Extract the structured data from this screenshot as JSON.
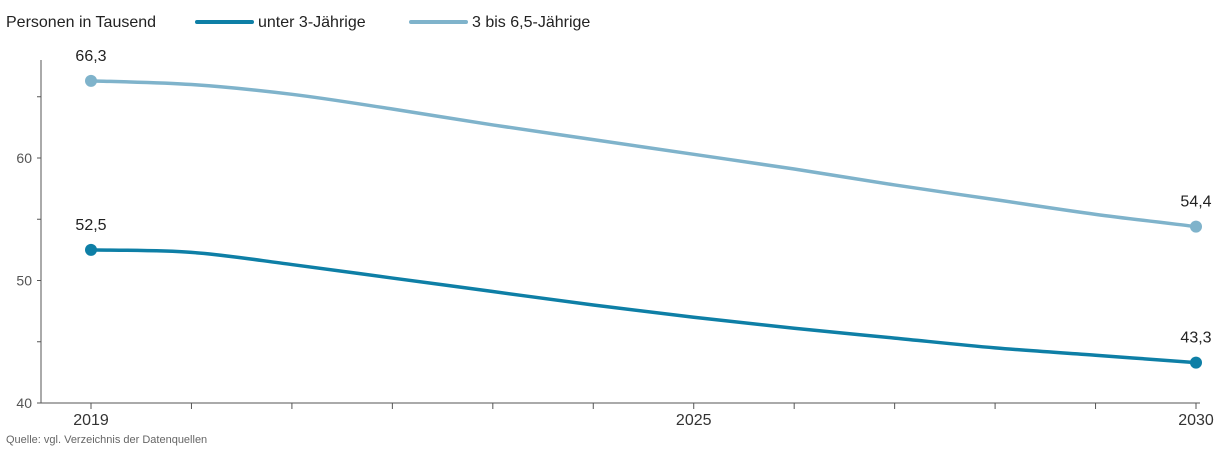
{
  "chart_data": {
    "type": "line",
    "unit_label": "Personen in Tausend",
    "x": [
      2019,
      2020,
      2021,
      2022,
      2023,
      2024,
      2025,
      2026,
      2027,
      2028,
      2029,
      2030
    ],
    "xticks_labeled": [
      2019,
      2025,
      2030
    ],
    "yticks": [
      40,
      50,
      60
    ],
    "ylim": [
      40,
      68
    ],
    "xlim": [
      2019,
      2030
    ],
    "grid": false,
    "legend_placement": "top-left",
    "series": [
      {
        "name": "unter 3-Jährige",
        "color": "#0e7fa6",
        "values": [
          52.5,
          52.3,
          51.3,
          50.2,
          49.1,
          48.0,
          47.0,
          46.1,
          45.3,
          44.5,
          43.9,
          43.3
        ],
        "end_labels": [
          "52,5",
          "43,3"
        ]
      },
      {
        "name": "3 bis 6,5-Jährige",
        "color": "#7fb3cb",
        "values": [
          66.3,
          66.0,
          65.2,
          64.0,
          62.7,
          61.5,
          60.3,
          59.1,
          57.8,
          56.6,
          55.4,
          54.4
        ],
        "end_labels": [
          "66,3",
          "54,4"
        ]
      }
    ],
    "source": "Quelle: vgl. Verzeichnis der Datenquellen"
  }
}
